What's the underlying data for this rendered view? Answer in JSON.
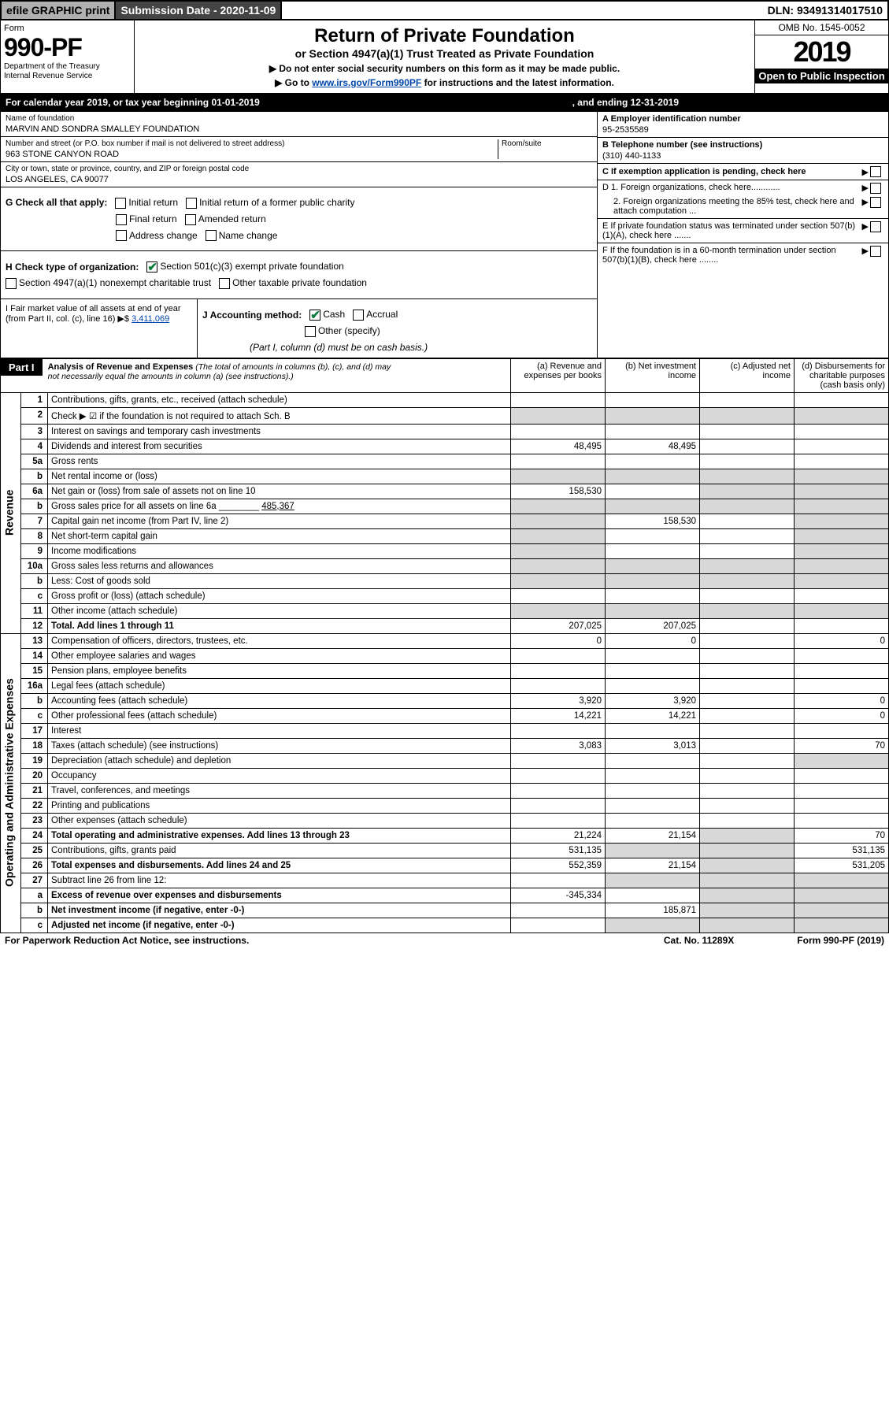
{
  "topbar": {
    "efile": "efile GRAPHIC print",
    "subdate_lbl": "Submission Date - ",
    "subdate": "2020-11-09",
    "dln_lbl": "DLN: ",
    "dln": "93491314017510"
  },
  "header": {
    "form": "Form",
    "number": "990-PF",
    "dept": "Department of the Treasury",
    "irs": "Internal Revenue Service",
    "title": "Return of Private Foundation",
    "subtitle": "or Section 4947(a)(1) Trust Treated as Private Foundation",
    "note1": "▶ Do not enter social security numbers on this form as it may be made public.",
    "note2": "▶ Go to ",
    "link": "www.irs.gov/Form990PF",
    "note3": " for instructions and the latest information.",
    "omb": "OMB No. 1545-0052",
    "year": "2019",
    "open": "Open to Public Inspection"
  },
  "calyear": {
    "text": "For calendar year 2019, or tax year beginning 01-01-2019",
    "end": ", and ending 12-31-2019"
  },
  "id": {
    "name_lbl": "Name of foundation",
    "name": "MARVIN AND SONDRA SMALLEY FOUNDATION",
    "addr_lbl": "Number and street (or P.O. box number if mail is not delivered to street address)",
    "room_lbl": "Room/suite",
    "addr": "963 STONE CANYON ROAD",
    "city_lbl": "City or town, state or province, country, and ZIP or foreign postal code",
    "city": "LOS ANGELES, CA  90077",
    "a_lbl": "A Employer identification number",
    "a": "95-2535589",
    "b_lbl": "B Telephone number (see instructions)",
    "b": "(310) 440-1133",
    "c_lbl": "C If exemption application is pending, check here"
  },
  "g": {
    "lbl": "G Check all that apply:",
    "o1": "Initial return",
    "o2": "Initial return of a former public charity",
    "o3": "Final return",
    "o4": "Amended return",
    "o5": "Address change",
    "o6": "Name change"
  },
  "h": {
    "lbl": "H Check type of organization:",
    "o1": "Section 501(c)(3) exempt private foundation",
    "o2": "Section 4947(a)(1) nonexempt charitable trust",
    "o3": "Other taxable private foundation"
  },
  "i": {
    "lbl": "I Fair market value of all assets at end of year (from Part II, col. (c), line 16) ▶$ ",
    "val": "3,411,069"
  },
  "j": {
    "lbl": "J Accounting method:",
    "o1": "Cash",
    "o2": "Accrual",
    "o3": "Other (specify)",
    "note": "(Part I, column (d) must be on cash basis.)"
  },
  "d": {
    "d1": "D 1. Foreign organizations, check here............",
    "d2": "2. Foreign organizations meeting the 85% test, check here and attach computation ..."
  },
  "e": {
    "lbl": "E  If private foundation status was terminated under section 507(b)(1)(A), check here ......."
  },
  "f": {
    "lbl": "F  If the foundation is in a 60-month termination under section 507(b)(1)(B), check here ........"
  },
  "part1": {
    "label": "Part I",
    "title": "Analysis of Revenue and Expenses ",
    "titlenote": "(The total of amounts in columns (b), (c), and (d) may not necessarily equal the amounts in column (a) (see instructions).)",
    "cols": {
      "a": "(a) Revenue and expenses per books",
      "b": "(b) Net investment income",
      "c": "(c) Adjusted net income",
      "d": "(d) Disbursements for charitable purposes (cash basis only)"
    }
  },
  "sections": {
    "rev": "Revenue",
    "exp": "Operating and Administrative Expenses"
  },
  "rows": [
    {
      "n": "1",
      "d": "Contributions, gifts, grants, etc., received (attach schedule)"
    },
    {
      "n": "2",
      "d": "Check ▶ ☑ if the foundation is not required to attach Sch. B"
    },
    {
      "n": "3",
      "d": "Interest on savings and temporary cash investments"
    },
    {
      "n": "4",
      "d": "Dividends and interest from securities",
      "a": "48,495",
      "b": "48,495"
    },
    {
      "n": "5a",
      "d": "Gross rents"
    },
    {
      "n": "b",
      "d": "Net rental income or (loss)"
    },
    {
      "n": "6a",
      "d": "Net gain or (loss) from sale of assets not on line 10",
      "a": "158,530"
    },
    {
      "n": "b",
      "d": "Gross sales price for all assets on line 6a ________",
      "inline": "485,367"
    },
    {
      "n": "7",
      "d": "Capital gain net income (from Part IV, line 2)",
      "b": "158,530"
    },
    {
      "n": "8",
      "d": "Net short-term capital gain"
    },
    {
      "n": "9",
      "d": "Income modifications"
    },
    {
      "n": "10a",
      "d": "Gross sales less returns and allowances"
    },
    {
      "n": "b",
      "d": "Less: Cost of goods sold"
    },
    {
      "n": "c",
      "d": "Gross profit or (loss) (attach schedule)"
    },
    {
      "n": "11",
      "d": "Other income (attach schedule)"
    },
    {
      "n": "12",
      "d": "Total. Add lines 1 through 11",
      "a": "207,025",
      "b": "207,025",
      "bold": true
    }
  ],
  "exprows": [
    {
      "n": "13",
      "d": "Compensation of officers, directors, trustees, etc.",
      "a": "0",
      "b": "0",
      "dd": "0"
    },
    {
      "n": "14",
      "d": "Other employee salaries and wages"
    },
    {
      "n": "15",
      "d": "Pension plans, employee benefits"
    },
    {
      "n": "16a",
      "d": "Legal fees (attach schedule)"
    },
    {
      "n": "b",
      "d": "Accounting fees (attach schedule)",
      "a": "3,920",
      "b": "3,920",
      "dd": "0"
    },
    {
      "n": "c",
      "d": "Other professional fees (attach schedule)",
      "a": "14,221",
      "b": "14,221",
      "dd": "0"
    },
    {
      "n": "17",
      "d": "Interest"
    },
    {
      "n": "18",
      "d": "Taxes (attach schedule) (see instructions)",
      "a": "3,083",
      "b": "3,013",
      "dd": "70"
    },
    {
      "n": "19",
      "d": "Depreciation (attach schedule) and depletion"
    },
    {
      "n": "20",
      "d": "Occupancy"
    },
    {
      "n": "21",
      "d": "Travel, conferences, and meetings"
    },
    {
      "n": "22",
      "d": "Printing and publications"
    },
    {
      "n": "23",
      "d": "Other expenses (attach schedule)"
    },
    {
      "n": "24",
      "d": "Total operating and administrative expenses. Add lines 13 through 23",
      "a": "21,224",
      "b": "21,154",
      "dd": "70",
      "bold": true
    },
    {
      "n": "25",
      "d": "Contributions, gifts, grants paid",
      "a": "531,135",
      "dd": "531,135"
    },
    {
      "n": "26",
      "d": "Total expenses and disbursements. Add lines 24 and 25",
      "a": "552,359",
      "b": "21,154",
      "dd": "531,205",
      "bold": true
    },
    {
      "n": "27",
      "d": "Subtract line 26 from line 12:"
    },
    {
      "n": "a",
      "d": "Excess of revenue over expenses and disbursements",
      "a": "-345,334",
      "bold": true
    },
    {
      "n": "b",
      "d": "Net investment income (if negative, enter -0-)",
      "b": "185,871",
      "bold": true
    },
    {
      "n": "c",
      "d": "Adjusted net income (if negative, enter -0-)",
      "bold": true
    }
  ],
  "footer": {
    "l": "For Paperwork Reduction Act Notice, see instructions.",
    "m": "Cat. No. 11289X",
    "r": "Form 990-PF (2019)"
  }
}
